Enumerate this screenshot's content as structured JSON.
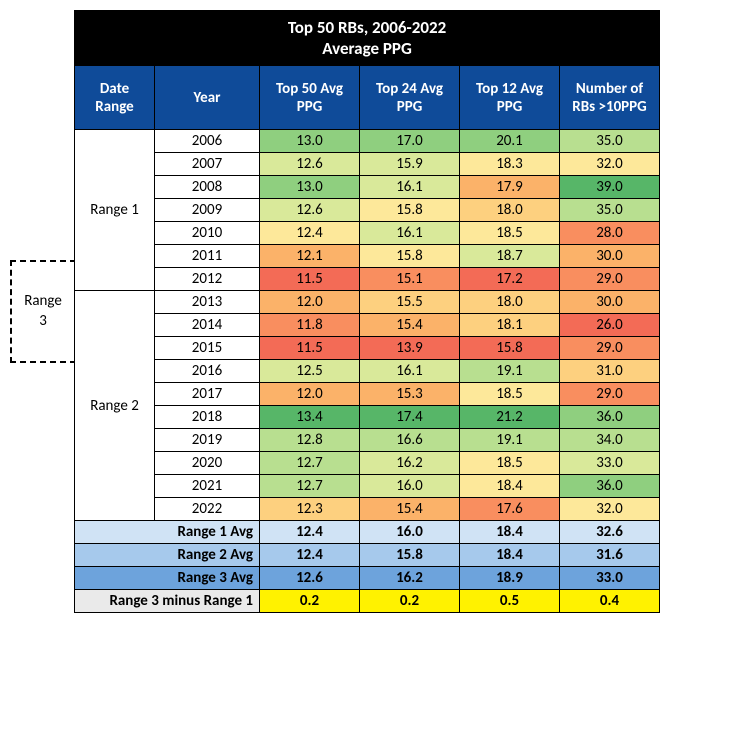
{
  "title_line1": "Top 50 RBs, 2006-2022",
  "title_line2": "Average PPG",
  "range3_label_l1": "Range",
  "range3_label_l2": "3",
  "headers": {
    "date_range": "Date Range",
    "year": "Year",
    "top50": "Top 50 Avg PPG",
    "top24": "Top 24 Avg PPG",
    "top12": "Top 12 Avg PPG",
    "num": "Number of RBs >10PPG"
  },
  "range1_label": "Range 1",
  "range2_label": "Range 2",
  "colors": {
    "heat_green_dark": "#57b668",
    "heat_green": "#8fcf7f",
    "heat_green_lt": "#b8df90",
    "heat_yel_grn": "#d9e99a",
    "heat_yellow": "#fde89a",
    "heat_yel_org": "#fdd07f",
    "heat_orange": "#fbb269",
    "heat_org_red": "#f98e5f",
    "heat_red": "#f36b56",
    "sum_bg1": "#d0e3f5",
    "sum_bg2": "#a6c9ec",
    "sum_bg3": "#6da3dc",
    "diff_bg": "#fff200",
    "diff_lbl_bg": "#eaeaea"
  },
  "rows": [
    {
      "year": "2006",
      "v": [
        "13.0",
        "17.0",
        "20.1",
        "35.0"
      ],
      "c": [
        "heat_green",
        "heat_green",
        "heat_green",
        "heat_green_lt"
      ]
    },
    {
      "year": "2007",
      "v": [
        "12.6",
        "15.9",
        "18.3",
        "32.0"
      ],
      "c": [
        "heat_yel_grn",
        "heat_yel_grn",
        "heat_yellow",
        "heat_yellow"
      ]
    },
    {
      "year": "2008",
      "v": [
        "13.0",
        "16.1",
        "17.9",
        "39.0"
      ],
      "c": [
        "heat_green",
        "heat_yel_grn",
        "heat_orange",
        "heat_green_dark"
      ]
    },
    {
      "year": "2009",
      "v": [
        "12.6",
        "15.8",
        "18.0",
        "35.0"
      ],
      "c": [
        "heat_yel_grn",
        "heat_yellow",
        "heat_yel_org",
        "heat_green_lt"
      ]
    },
    {
      "year": "2010",
      "v": [
        "12.4",
        "16.1",
        "18.5",
        "28.0"
      ],
      "c": [
        "heat_yellow",
        "heat_yel_grn",
        "heat_yellow",
        "heat_org_red"
      ]
    },
    {
      "year": "2011",
      "v": [
        "12.1",
        "15.8",
        "18.7",
        "30.0"
      ],
      "c": [
        "heat_orange",
        "heat_yellow",
        "heat_yel_grn",
        "heat_orange"
      ]
    },
    {
      "year": "2012",
      "v": [
        "11.5",
        "15.1",
        "17.2",
        "29.0"
      ],
      "c": [
        "heat_red",
        "heat_org_red",
        "heat_red",
        "heat_org_red"
      ]
    },
    {
      "year": "2013",
      "v": [
        "12.0",
        "15.5",
        "18.0",
        "30.0"
      ],
      "c": [
        "heat_orange",
        "heat_yel_org",
        "heat_yel_org",
        "heat_orange"
      ]
    },
    {
      "year": "2014",
      "v": [
        "11.8",
        "15.4",
        "18.1",
        "26.0"
      ],
      "c": [
        "heat_org_red",
        "heat_orange",
        "heat_yel_org",
        "heat_red"
      ]
    },
    {
      "year": "2015",
      "v": [
        "11.5",
        "13.9",
        "15.8",
        "29.0"
      ],
      "c": [
        "heat_red",
        "heat_red",
        "heat_red",
        "heat_org_red"
      ]
    },
    {
      "year": "2016",
      "v": [
        "12.5",
        "16.1",
        "19.1",
        "31.0"
      ],
      "c": [
        "heat_yel_grn",
        "heat_yel_grn",
        "heat_green_lt",
        "heat_yel_org"
      ]
    },
    {
      "year": "2017",
      "v": [
        "12.0",
        "15.3",
        "18.5",
        "29.0"
      ],
      "c": [
        "heat_orange",
        "heat_orange",
        "heat_yellow",
        "heat_org_red"
      ]
    },
    {
      "year": "2018",
      "v": [
        "13.4",
        "17.4",
        "21.2",
        "36.0"
      ],
      "c": [
        "heat_green_dark",
        "heat_green_dark",
        "heat_green_dark",
        "heat_green"
      ]
    },
    {
      "year": "2019",
      "v": [
        "12.8",
        "16.6",
        "19.1",
        "34.0"
      ],
      "c": [
        "heat_green_lt",
        "heat_green_lt",
        "heat_green_lt",
        "heat_green_lt"
      ]
    },
    {
      "year": "2020",
      "v": [
        "12.7",
        "16.2",
        "18.5",
        "33.0"
      ],
      "c": [
        "heat_green_lt",
        "heat_yel_grn",
        "heat_yellow",
        "heat_yel_grn"
      ]
    },
    {
      "year": "2021",
      "v": [
        "12.7",
        "16.0",
        "18.4",
        "36.0"
      ],
      "c": [
        "heat_green_lt",
        "heat_yel_grn",
        "heat_yellow",
        "heat_green"
      ]
    },
    {
      "year": "2022",
      "v": [
        "12.3",
        "15.4",
        "17.6",
        "32.0"
      ],
      "c": [
        "heat_yel_org",
        "heat_orange",
        "heat_org_red",
        "heat_yellow"
      ]
    }
  ],
  "summary": [
    {
      "label": "Range 1 Avg",
      "v": [
        "12.4",
        "16.0",
        "18.4",
        "32.6"
      ],
      "bg": "sum_bg1"
    },
    {
      "label": "Range 2 Avg",
      "v": [
        "12.4",
        "15.8",
        "18.4",
        "31.6"
      ],
      "bg": "sum_bg2"
    },
    {
      "label": "Range 3 Avg",
      "v": [
        "12.6",
        "16.2",
        "18.9",
        "33.0"
      ],
      "bg": "sum_bg3"
    }
  ],
  "diff": {
    "label": "Range 3 minus Range 1",
    "v": [
      "0.2",
      "0.2",
      "0.5",
      "0.4"
    ]
  }
}
